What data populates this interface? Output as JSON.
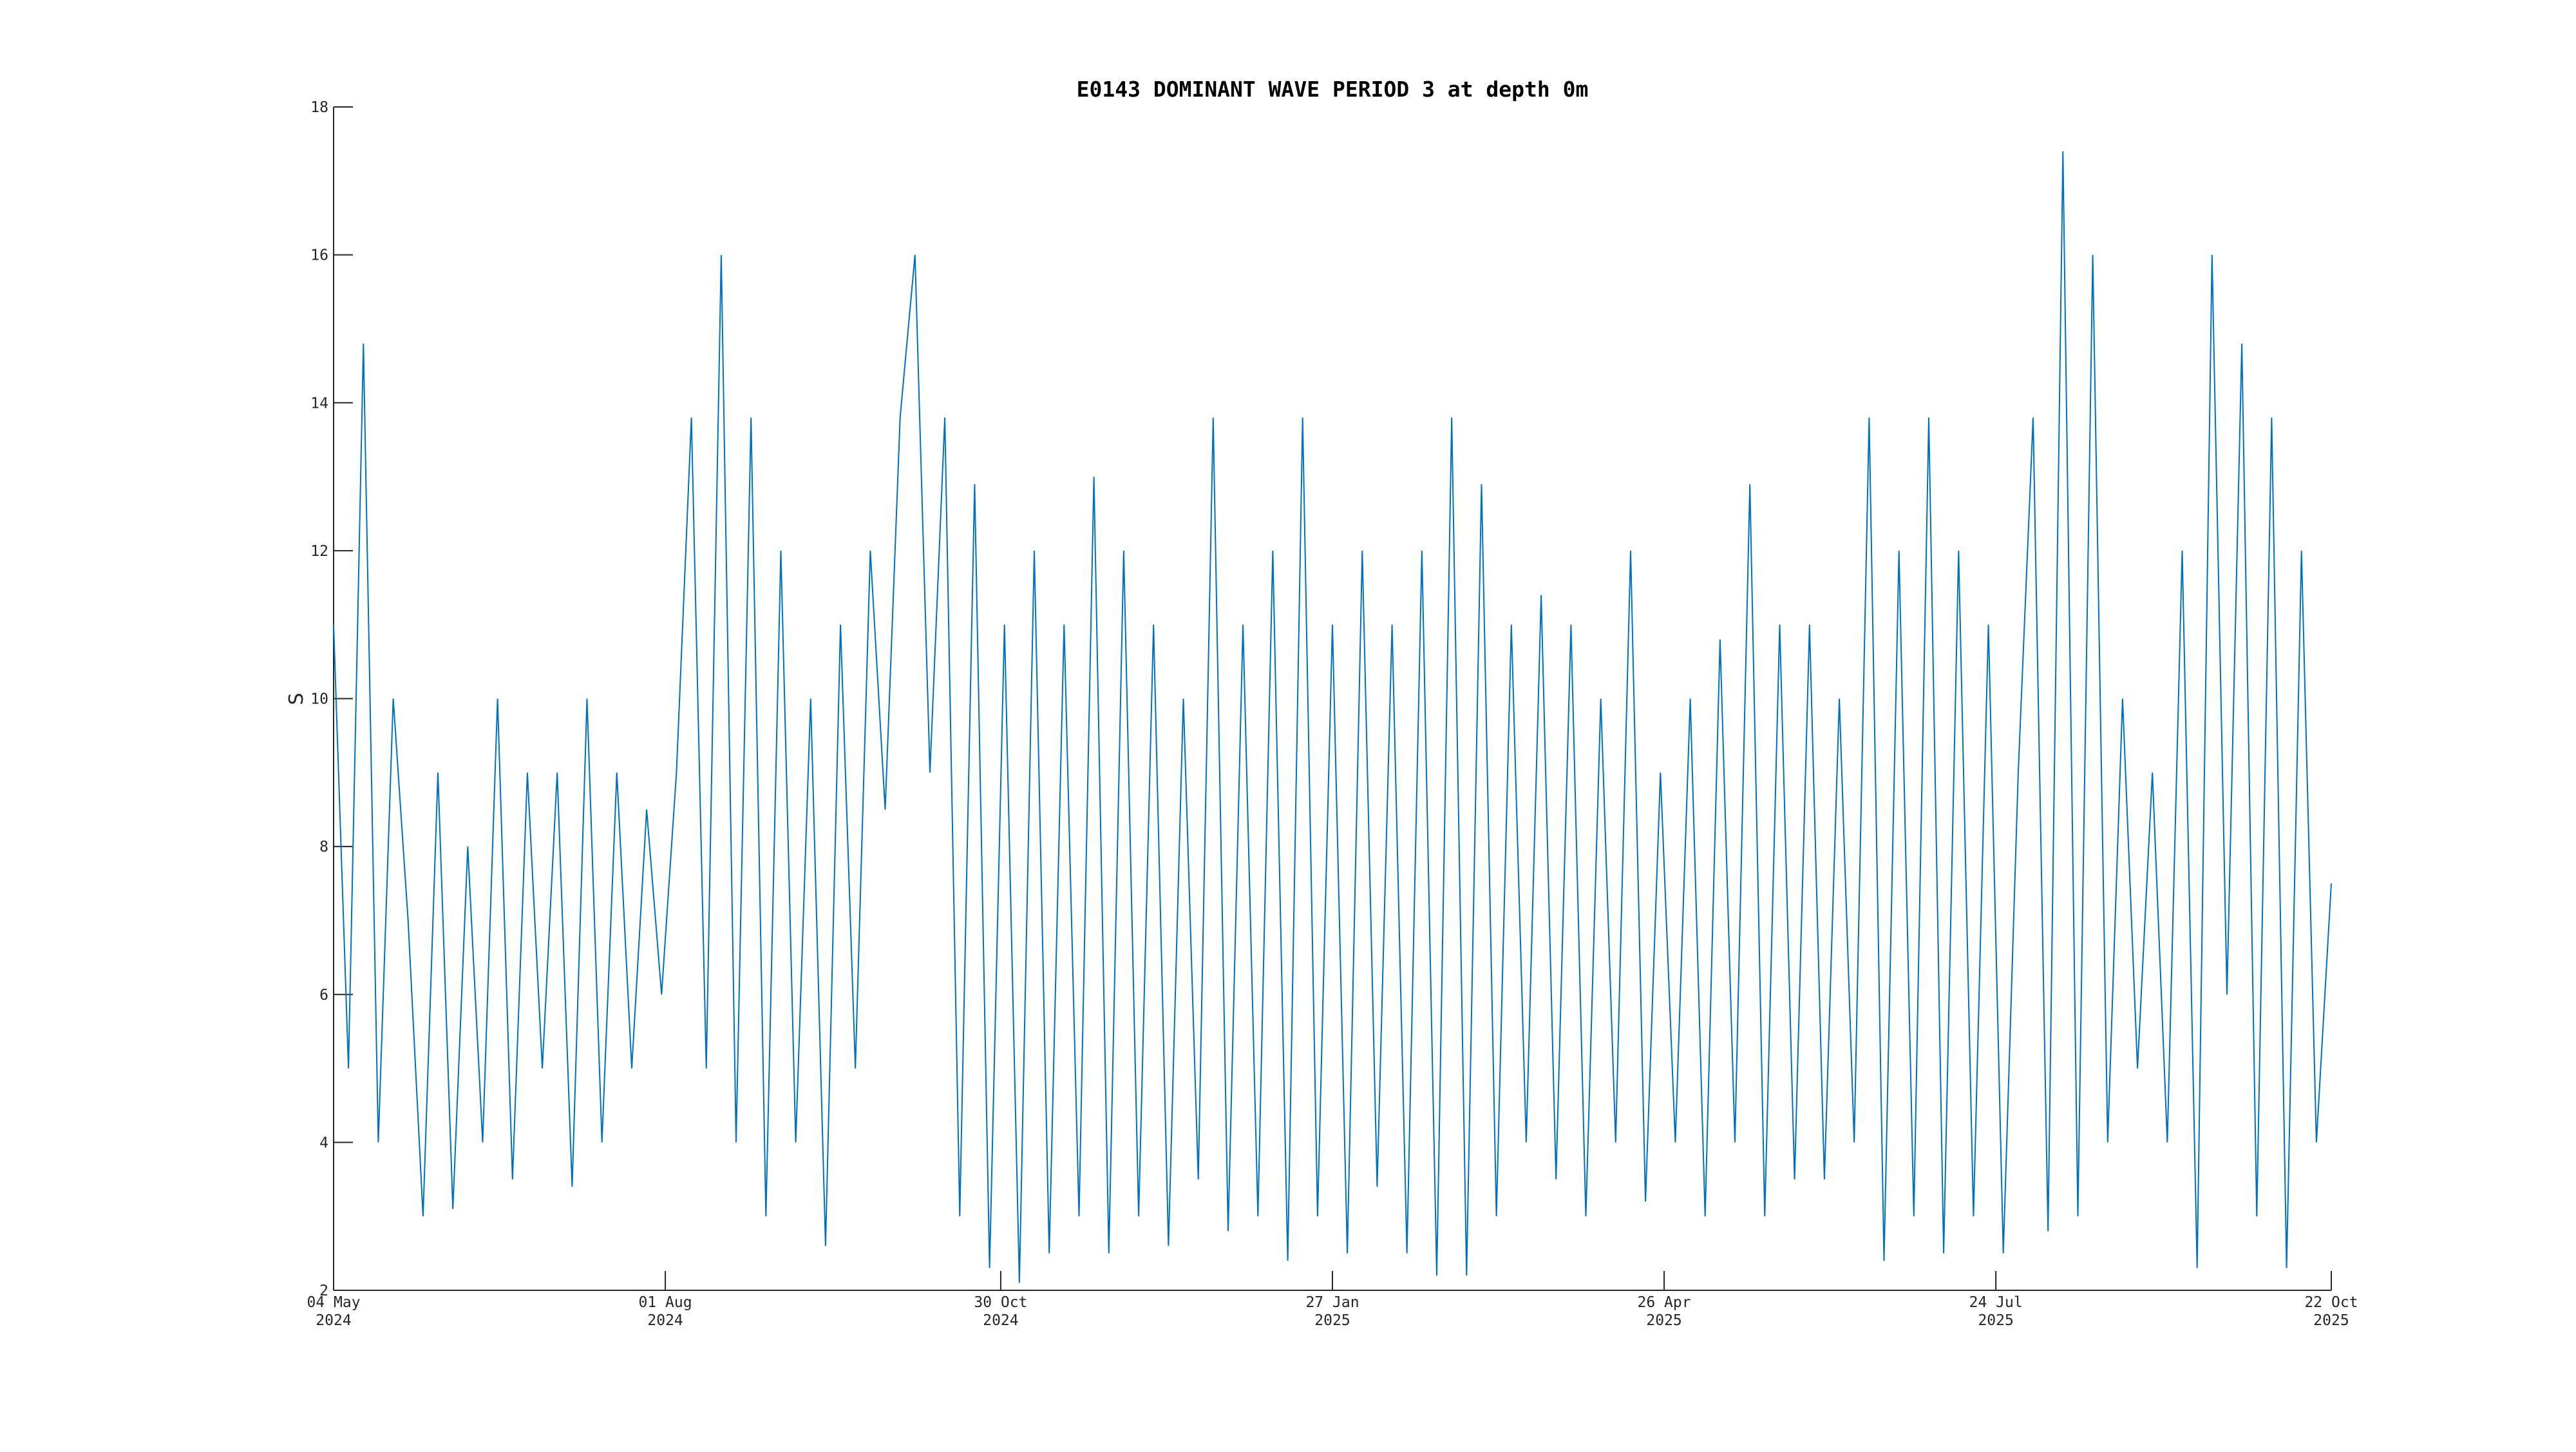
{
  "chart_data": {
    "type": "line",
    "title": "E0143 DOMINANT WAVE PERIOD 3 at depth 0m",
    "y_label": "S",
    "x": [
      "2024-05-04",
      "2024-05-08",
      "2024-05-12",
      "2024-05-16",
      "2024-05-20",
      "2024-05-24",
      "2024-05-28",
      "2024-06-01",
      "2024-06-05",
      "2024-06-09",
      "2024-06-13",
      "2024-06-17",
      "2024-06-21",
      "2024-06-25",
      "2024-06-29",
      "2024-07-03",
      "2024-07-07",
      "2024-07-11",
      "2024-07-15",
      "2024-07-19",
      "2024-07-23",
      "2024-07-27",
      "2024-07-31",
      "2024-08-04",
      "2024-08-08",
      "2024-08-12",
      "2024-08-16",
      "2024-08-20",
      "2024-08-24",
      "2024-08-28",
      "2024-09-01",
      "2024-09-05",
      "2024-09-09",
      "2024-09-13",
      "2024-09-17",
      "2024-09-21",
      "2024-09-25",
      "2024-09-29",
      "2024-10-03",
      "2024-10-07",
      "2024-10-11",
      "2024-10-15",
      "2024-10-19",
      "2024-10-23",
      "2024-10-27",
      "2024-10-31",
      "2024-11-04",
      "2024-11-08",
      "2024-11-12",
      "2024-11-16",
      "2024-11-20",
      "2024-11-24",
      "2024-11-28",
      "2024-12-02",
      "2024-12-06",
      "2024-12-10",
      "2024-12-14",
      "2024-12-18",
      "2024-12-22",
      "2024-12-26",
      "2024-12-30",
      "2025-01-03",
      "2025-01-07",
      "2025-01-11",
      "2025-01-15",
      "2025-01-19",
      "2025-01-23",
      "2025-01-27",
      "2025-01-31",
      "2025-02-04",
      "2025-02-08",
      "2025-02-12",
      "2025-02-16",
      "2025-02-20",
      "2025-02-24",
      "2025-02-28",
      "2025-03-04",
      "2025-03-08",
      "2025-03-12",
      "2025-03-16",
      "2025-03-20",
      "2025-03-24",
      "2025-03-28",
      "2025-04-01",
      "2025-04-05",
      "2025-04-09",
      "2025-04-13",
      "2025-04-17",
      "2025-04-21",
      "2025-04-25",
      "2025-04-29",
      "2025-05-03",
      "2025-05-07",
      "2025-05-11",
      "2025-05-15",
      "2025-05-19",
      "2025-05-23",
      "2025-05-27",
      "2025-05-31",
      "2025-06-04",
      "2025-06-08",
      "2025-06-12",
      "2025-06-16",
      "2025-06-20",
      "2025-06-24",
      "2025-06-28",
      "2025-07-02",
      "2025-07-06",
      "2025-07-10",
      "2025-07-14",
      "2025-07-18",
      "2025-07-22",
      "2025-07-26",
      "2025-07-30",
      "2025-08-03",
      "2025-08-07",
      "2025-08-11",
      "2025-08-15",
      "2025-08-19",
      "2025-08-23",
      "2025-08-27",
      "2025-08-31",
      "2025-09-04",
      "2025-09-08",
      "2025-09-12",
      "2025-09-16",
      "2025-09-20",
      "2025-09-24",
      "2025-09-28",
      "2025-10-02",
      "2025-10-06",
      "2025-10-10",
      "2025-10-14",
      "2025-10-18",
      "2025-10-22"
    ],
    "series": [
      {
        "color": "#0072bd",
        "values": [
          11,
          5,
          14.8,
          4,
          10,
          7,
          3,
          9,
          3.1,
          8,
          4,
          10,
          3.5,
          9,
          5,
          9,
          3.4,
          10,
          4,
          9,
          5,
          8.5,
          6,
          9,
          13.8,
          5,
          16,
          4,
          13.8,
          3,
          12,
          4,
          10,
          2.6,
          11,
          5,
          12,
          8.5,
          13.8,
          16,
          9,
          13.8,
          3,
          12.9,
          2.3,
          11,
          2.1,
          12,
          2.5,
          11,
          3,
          13,
          2.5,
          12,
          3,
          11,
          2.6,
          10,
          3.5,
          13.8,
          2.8,
          11,
          3,
          12,
          2.4,
          13.8,
          3,
          11,
          2.5,
          12,
          3.4,
          11,
          2.5,
          12,
          2.2,
          13.8,
          2.2,
          12.9,
          3,
          11,
          4,
          11.4,
          3.5,
          11,
          3,
          10,
          4,
          12,
          3.2,
          9,
          4,
          10,
          3,
          10.8,
          4,
          12.9,
          3,
          11,
          3.5,
          11,
          3.5,
          10,
          4,
          13.8,
          2.4,
          12,
          3,
          13.8,
          2.5,
          12,
          3,
          11,
          2.5,
          9,
          13.8,
          2.8,
          17.4,
          3,
          16,
          4,
          10,
          5,
          9,
          4,
          12,
          2.3,
          16,
          6,
          14.8,
          3,
          13.8,
          2.3,
          12,
          4,
          7.5
        ]
      }
    ],
    "xlim": [
      "2024-05-04",
      "2025-10-22"
    ],
    "xticks": [
      {
        "value": "2024-05-04",
        "label": [
          "04 May",
          "2024"
        ]
      },
      {
        "value": "2024-08-01",
        "label": [
          "01 Aug",
          "2024"
        ]
      },
      {
        "value": "2024-10-30",
        "label": [
          "30 Oct",
          "2024"
        ]
      },
      {
        "value": "2025-01-27",
        "label": [
          "27 Jan",
          "2025"
        ]
      },
      {
        "value": "2025-04-26",
        "label": [
          "26 Apr",
          "2025"
        ]
      },
      {
        "value": "2025-07-24",
        "label": [
          "24 Jul",
          "2025"
        ]
      },
      {
        "value": "2025-10-22",
        "label": [
          "22 Oct",
          "2025"
        ]
      }
    ],
    "ylim": [
      2,
      18
    ],
    "yticks": [
      2,
      4,
      6,
      8,
      10,
      12,
      14,
      16,
      18
    ],
    "grid": false
  }
}
